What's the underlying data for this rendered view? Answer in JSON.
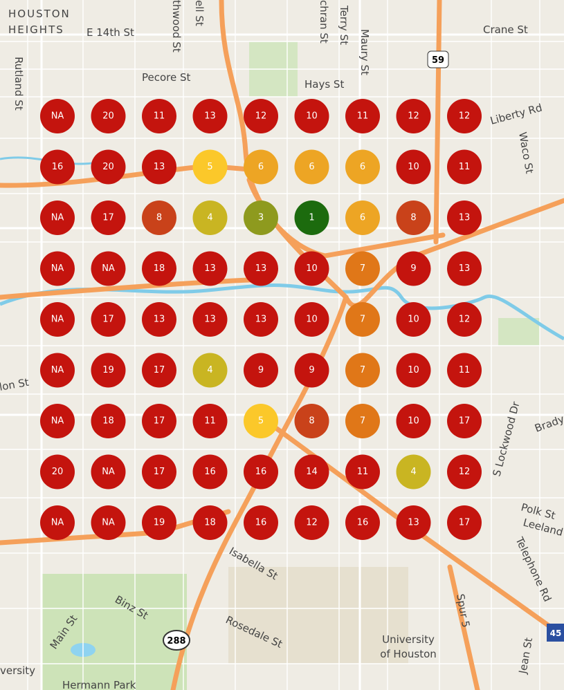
{
  "map": {
    "labels": {
      "houston": "HOUSTON",
      "heights": "HEIGHTS",
      "e14": "E 14th St",
      "pecore": "Pecore St",
      "hays": "Hays St",
      "crane": "Crane St",
      "liberty": "Liberty Rd",
      "waco": "Waco St",
      "rutland": "Rutland St",
      "thwood": "thwood St",
      "ell": "ell St",
      "chran": "chran St",
      "terry": "Terry St",
      "maury": "Maury St",
      "us59": "59",
      "lockwood": "S Lockwood Dr",
      "brady": "Brady",
      "polk": "Polk St",
      "leeland": "Leeland",
      "telephone": "Telephone Rd",
      "isabella": "Isabella St",
      "binz": "Binz St",
      "main": "Main St",
      "rosedale": "Rosedale St",
      "sh288": "288",
      "uh1": "University",
      "uh2": "of Houston",
      "spur": "Spur 5",
      "jean": "Jean St",
      "i45": "45",
      "hermann": "Hermann Park",
      "versity": "versity",
      "lon": "lon St"
    },
    "grid": {
      "rows": [
        [
          {
            "label": "NA",
            "color": "#c4140e"
          },
          {
            "label": "20",
            "color": "#c4140e"
          },
          {
            "label": "11",
            "color": "#c4140e"
          },
          {
            "label": "13",
            "color": "#c4140e"
          },
          {
            "label": "12",
            "color": "#c4140e"
          },
          {
            "label": "10",
            "color": "#c4140e"
          },
          {
            "label": "11",
            "color": "#c4140e"
          },
          {
            "label": "12",
            "color": "#c4140e"
          },
          {
            "label": "12",
            "color": "#c4140e"
          }
        ],
        [
          {
            "label": "16",
            "color": "#c4140e"
          },
          {
            "label": "20",
            "color": "#c4140e"
          },
          {
            "label": "13",
            "color": "#c4140e"
          },
          {
            "label": "5",
            "color": "#fbc82a"
          },
          {
            "label": "6",
            "color": "#eda524"
          },
          {
            "label": "6",
            "color": "#eda524"
          },
          {
            "label": "6",
            "color": "#eda524"
          },
          {
            "label": "10",
            "color": "#c4140e"
          },
          {
            "label": "11",
            "color": "#c4140e"
          }
        ],
        [
          {
            "label": "NA",
            "color": "#c4140e"
          },
          {
            "label": "17",
            "color": "#c4140e"
          },
          {
            "label": "8",
            "color": "#c9421a"
          },
          {
            "label": "4",
            "color": "#c9b522"
          },
          {
            "label": "3",
            "color": "#8e9a1e"
          },
          {
            "label": "1",
            "color": "#1c6b0e"
          },
          {
            "label": "6",
            "color": "#eda524"
          },
          {
            "label": "8",
            "color": "#c9421a"
          },
          {
            "label": "13",
            "color": "#c4140e"
          }
        ],
        [
          {
            "label": "NA",
            "color": "#c4140e"
          },
          {
            "label": "NA",
            "color": "#c4140e"
          },
          {
            "label": "18",
            "color": "#c4140e"
          },
          {
            "label": "13",
            "color": "#c4140e"
          },
          {
            "label": "13",
            "color": "#c4140e"
          },
          {
            "label": "10",
            "color": "#c4140e"
          },
          {
            "label": "7",
            "color": "#e07718"
          },
          {
            "label": "9",
            "color": "#c4140e"
          },
          {
            "label": "13",
            "color": "#c4140e"
          }
        ],
        [
          {
            "label": "NA",
            "color": "#c4140e"
          },
          {
            "label": "17",
            "color": "#c4140e"
          },
          {
            "label": "13",
            "color": "#c4140e"
          },
          {
            "label": "13",
            "color": "#c4140e"
          },
          {
            "label": "13",
            "color": "#c4140e"
          },
          {
            "label": "10",
            "color": "#c4140e"
          },
          {
            "label": "7",
            "color": "#e07718"
          },
          {
            "label": "10",
            "color": "#c4140e"
          },
          {
            "label": "12",
            "color": "#c4140e"
          }
        ],
        [
          {
            "label": "NA",
            "color": "#c4140e"
          },
          {
            "label": "19",
            "color": "#c4140e"
          },
          {
            "label": "17",
            "color": "#c4140e"
          },
          {
            "label": "4",
            "color": "#c9b522"
          },
          {
            "label": "9",
            "color": "#c4140e"
          },
          {
            "label": "9",
            "color": "#c4140e"
          },
          {
            "label": "7",
            "color": "#e07718"
          },
          {
            "label": "10",
            "color": "#c4140e"
          },
          {
            "label": "11",
            "color": "#c4140e"
          }
        ],
        [
          {
            "label": "NA",
            "color": "#c4140e"
          },
          {
            "label": "18",
            "color": "#c4140e"
          },
          {
            "label": "17",
            "color": "#c4140e"
          },
          {
            "label": "11",
            "color": "#c4140e"
          },
          {
            "label": "5",
            "color": "#fbc82a"
          },
          {
            "label": "8",
            "color": "#c9421a"
          },
          {
            "label": "7",
            "color": "#e07718"
          },
          {
            "label": "10",
            "color": "#c4140e"
          },
          {
            "label": "17",
            "color": "#c4140e"
          }
        ],
        [
          {
            "label": "20",
            "color": "#c4140e"
          },
          {
            "label": "NA",
            "color": "#c4140e"
          },
          {
            "label": "17",
            "color": "#c4140e"
          },
          {
            "label": "16",
            "color": "#c4140e"
          },
          {
            "label": "16",
            "color": "#c4140e"
          },
          {
            "label": "14",
            "color": "#c4140e"
          },
          {
            "label": "11",
            "color": "#c4140e"
          },
          {
            "label": "4",
            "color": "#c9b522"
          },
          {
            "label": "12",
            "color": "#c4140e"
          }
        ],
        [
          {
            "label": "NA",
            "color": "#c4140e"
          },
          {
            "label": "NA",
            "color": "#c4140e"
          },
          {
            "label": "19",
            "color": "#c4140e"
          },
          {
            "label": "18",
            "color": "#c4140e"
          },
          {
            "label": "16",
            "color": "#c4140e"
          },
          {
            "label": "12",
            "color": "#c4140e"
          },
          {
            "label": "16",
            "color": "#c4140e"
          },
          {
            "label": "13",
            "color": "#c4140e"
          },
          {
            "label": "17",
            "color": "#c4140e"
          }
        ]
      ]
    }
  }
}
